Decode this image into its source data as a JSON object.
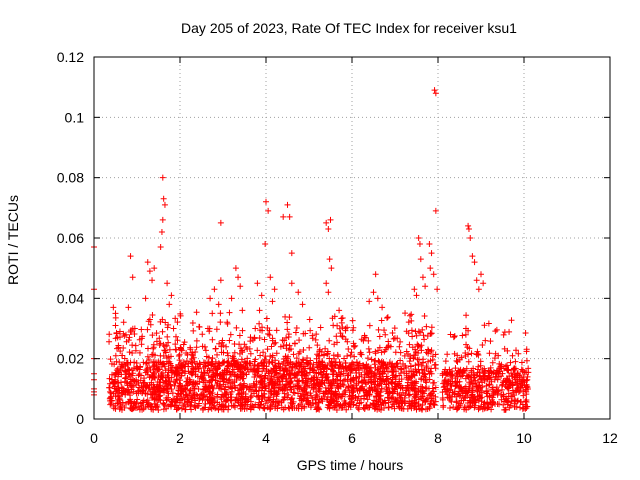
{
  "chart_data": {
    "type": "scatter",
    "title": "Day 205 of 2023, Rate Of TEC Index for receiver ksu1",
    "xlabel": "GPS time / hours",
    "ylabel": "ROTI / TECUs",
    "xlim": [
      0,
      12
    ],
    "ylim": [
      0,
      0.12
    ],
    "x_ticks": [
      0,
      2,
      4,
      6,
      8,
      10,
      12
    ],
    "y_ticks": [
      0,
      0.02,
      0.04,
      0.06,
      0.08,
      0.1,
      0.12
    ],
    "x_tick_labels": [
      "0",
      "2",
      "4",
      "6",
      "8",
      "10",
      "12"
    ],
    "y_tick_labels": [
      "0",
      "0.02",
      "0.04",
      "0.06",
      "0.08",
      "0.1",
      "0.12"
    ],
    "grid": true,
    "marker": "plus",
    "color": "#ff0000",
    "series": [
      {
        "points": [
          [
            0.0,
            0.057
          ],
          [
            0.0,
            0.043
          ],
          [
            0.0,
            0.02
          ],
          [
            0.0,
            0.015
          ],
          [
            0.0,
            0.013
          ],
          [
            0.0,
            0.01
          ],
          [
            0.0,
            0.009
          ],
          [
            0.0,
            0.008
          ],
          [
            0.45,
            0.037
          ],
          [
            0.5,
            0.035
          ],
          [
            0.5,
            0.031
          ],
          [
            0.55,
            0.027
          ],
          [
            0.85,
            0.054
          ],
          [
            0.9,
            0.047
          ],
          [
            0.8,
            0.037
          ],
          [
            0.95,
            0.03
          ],
          [
            1.25,
            0.052
          ],
          [
            1.3,
            0.049
          ],
          [
            1.35,
            0.046
          ],
          [
            1.4,
            0.05
          ],
          [
            1.2,
            0.04
          ],
          [
            1.3,
            0.033
          ],
          [
            1.6,
            0.08
          ],
          [
            1.62,
            0.073
          ],
          [
            1.65,
            0.071
          ],
          [
            1.6,
            0.066
          ],
          [
            1.58,
            0.062
          ],
          [
            1.55,
            0.057
          ],
          [
            1.7,
            0.045
          ],
          [
            1.8,
            0.041
          ],
          [
            1.75,
            0.038
          ],
          [
            1.85,
            0.03
          ],
          [
            2.7,
            0.04
          ],
          [
            2.8,
            0.043
          ],
          [
            2.75,
            0.035
          ],
          [
            2.9,
            0.038
          ],
          [
            2.95,
            0.046
          ],
          [
            2.65,
            0.03
          ],
          [
            2.95,
            0.065
          ],
          [
            3.3,
            0.05
          ],
          [
            3.35,
            0.047
          ],
          [
            3.4,
            0.044
          ],
          [
            3.2,
            0.04
          ],
          [
            3.45,
            0.036
          ],
          [
            3.8,
            0.045
          ],
          [
            3.9,
            0.041
          ],
          [
            3.85,
            0.036
          ],
          [
            3.75,
            0.03
          ],
          [
            4.0,
            0.072
          ],
          [
            4.05,
            0.069
          ],
          [
            3.98,
            0.058
          ],
          [
            4.1,
            0.047
          ],
          [
            4.2,
            0.043
          ],
          [
            4.15,
            0.039
          ],
          [
            4.4,
            0.067
          ],
          [
            4.5,
            0.071
          ],
          [
            4.55,
            0.067
          ],
          [
            4.6,
            0.055
          ],
          [
            4.6,
            0.045
          ],
          [
            4.75,
            0.042
          ],
          [
            4.85,
            0.038
          ],
          [
            5.4,
            0.065
          ],
          [
            5.45,
            0.063
          ],
          [
            5.5,
            0.066
          ],
          [
            5.48,
            0.053
          ],
          [
            5.52,
            0.05
          ],
          [
            5.4,
            0.045
          ],
          [
            5.45,
            0.042
          ],
          [
            5.6,
            0.034
          ],
          [
            5.7,
            0.036
          ],
          [
            6.4,
            0.039
          ],
          [
            6.5,
            0.042
          ],
          [
            6.55,
            0.048
          ],
          [
            6.6,
            0.04
          ],
          [
            6.7,
            0.037
          ],
          [
            7.45,
            0.043
          ],
          [
            7.5,
            0.041
          ],
          [
            7.55,
            0.06
          ],
          [
            7.58,
            0.058
          ],
          [
            7.6,
            0.053
          ],
          [
            7.65,
            0.047
          ],
          [
            7.7,
            0.044
          ],
          [
            7.8,
            0.058
          ],
          [
            7.85,
            0.055
          ],
          [
            7.82,
            0.05
          ],
          [
            7.9,
            0.048
          ],
          [
            7.92,
            0.109
          ],
          [
            7.95,
            0.108
          ],
          [
            7.95,
            0.069
          ],
          [
            7.98,
            0.043
          ],
          [
            8.7,
            0.064
          ],
          [
            8.72,
            0.063
          ],
          [
            8.75,
            0.06
          ],
          [
            8.8,
            0.054
          ],
          [
            8.85,
            0.052
          ],
          [
            8.9,
            0.046
          ],
          [
            8.95,
            0.043
          ],
          [
            9.0,
            0.048
          ],
          [
            9.05,
            0.045
          ],
          [
            8.65,
            0.03
          ],
          [
            9.1,
            0.026
          ],
          [
            9.4,
            0.021
          ],
          [
            9.8,
            0.019
          ]
        ]
      }
    ]
  }
}
